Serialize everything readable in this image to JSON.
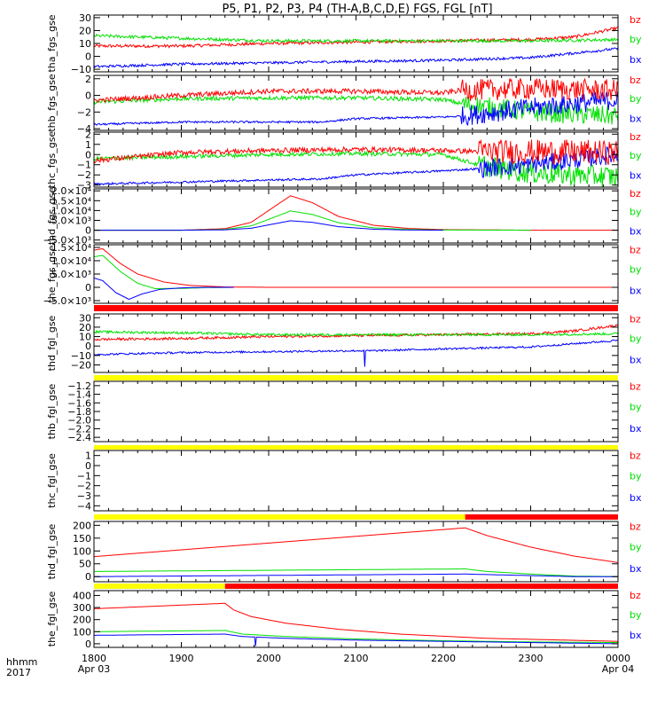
{
  "title": "P5, P1, P2, P3, P4 (TH-A,B,C,D,E) FGS, FGL [nT]",
  "x_axis": {
    "ticks": [
      {
        "label": "1800",
        "sub": "Apr 03",
        "t": 0
      },
      {
        "label": "1900",
        "sub": "",
        "t": 1
      },
      {
        "label": "2000",
        "sub": "",
        "t": 2
      },
      {
        "label": "2100",
        "sub": "",
        "t": 3
      },
      {
        "label": "2200",
        "sub": "",
        "t": 4
      },
      {
        "label": "2300",
        "sub": "",
        "t": 5
      },
      {
        "label": "0000",
        "sub": "Apr 04",
        "t": 6
      }
    ],
    "left_label_1": "hhmm",
    "left_label_2": "2017"
  },
  "legend_colors": {
    "bz": "#ff0000",
    "by": "#00e000",
    "bx": "#0000ff"
  },
  "chart_data": [
    {
      "type": "line",
      "ylabel": "tha_fgs_gse",
      "ylim": [
        -12,
        32
      ],
      "yticks": [
        {
          "v": 30,
          "label": "30"
        },
        {
          "v": 20,
          "label": "20"
        },
        {
          "v": 10,
          "label": "10"
        },
        {
          "v": 0,
          "label": "0"
        },
        {
          "v": -10,
          "label": "−10"
        }
      ],
      "legend": [
        "bz",
        "by",
        "bx"
      ],
      "series": [
        {
          "name": "bz",
          "color": "#ff0000",
          "noise": 1.2,
          "x": [
            0,
            1,
            2,
            3,
            4,
            5,
            5.5,
            6
          ],
          "y": [
            8,
            8,
            10,
            11,
            12,
            13,
            15,
            22
          ]
        },
        {
          "name": "by",
          "color": "#00e000",
          "noise": 1.2,
          "x": [
            0,
            1,
            2,
            3,
            4,
            5,
            6
          ],
          "y": [
            16,
            14,
            12,
            12,
            12,
            12,
            13
          ]
        },
        {
          "name": "bx",
          "color": "#0000ff",
          "noise": 1,
          "x": [
            0,
            1,
            2,
            3,
            4,
            5,
            6
          ],
          "y": [
            -8,
            -6,
            -5,
            -4,
            -3,
            -1,
            6
          ]
        }
      ]
    },
    {
      "type": "line",
      "ylabel": "thb_fgs_gse",
      "ylim": [
        -4.2,
        2.4
      ],
      "yticks": [
        {
          "v": 2,
          "label": "2"
        },
        {
          "v": 0,
          "label": "0"
        },
        {
          "v": -2,
          "label": "−2"
        },
        {
          "v": -4,
          "label": "−4"
        }
      ],
      "legend": [
        "bz",
        "by",
        "bx"
      ],
      "series": [
        {
          "name": "by",
          "color": "#00e000",
          "noise": 0.25,
          "x": [
            0,
            1,
            2,
            3,
            4,
            4.2,
            5,
            6
          ],
          "y": [
            -0.8,
            -0.4,
            -0.3,
            -0.3,
            -0.5,
            -1,
            -2,
            -2.5
          ],
          "noise_after": 4.2,
          "noise_big": 1.2
        },
        {
          "name": "bx",
          "color": "#0000ff",
          "noise": 0.12,
          "x": [
            0,
            1,
            2,
            2.6,
            3,
            4,
            4.2,
            5,
            6
          ],
          "y": [
            -3.5,
            -3.2,
            -3.2,
            -3.2,
            -2.8,
            -2.6,
            -2.5,
            -1.5,
            -0.5
          ],
          "noise_after": 4.2,
          "noise_big": 1.2
        },
        {
          "name": "bz",
          "color": "#ff0000",
          "noise": 0.3,
          "x": [
            0,
            1,
            2,
            3,
            4,
            4.2,
            5,
            6
          ],
          "y": [
            -0.6,
            0,
            0.5,
            0.5,
            0.3,
            0.6,
            0.8,
            0.6
          ],
          "noise_after": 4.2,
          "noise_big": 1.3
        }
      ]
    },
    {
      "type": "line",
      "ylabel": "thc_fgs_gse",
      "ylim": [
        -3.2,
        2.2
      ],
      "yticks": [
        {
          "v": 2,
          "label": "2"
        },
        {
          "v": 1,
          "label": "1"
        },
        {
          "v": 0,
          "label": "0"
        },
        {
          "v": -1,
          "label": "−1"
        },
        {
          "v": -2,
          "label": "−2"
        },
        {
          "v": -3,
          "label": "−3"
        }
      ],
      "legend": [
        "bz",
        "by",
        "bx"
      ],
      "series": [
        {
          "name": "by",
          "color": "#00e000",
          "noise": 0.2,
          "x": [
            0,
            1,
            2,
            3,
            4,
            4.4,
            5,
            6
          ],
          "y": [
            -0.4,
            -0.2,
            0,
            0.1,
            0,
            -1,
            -1.8,
            -2.2
          ],
          "noise_after": 4.4,
          "noise_big": 1.1
        },
        {
          "name": "bx",
          "color": "#0000ff",
          "noise": 0.1,
          "x": [
            0,
            1,
            2,
            2.6,
            3,
            4,
            4.4,
            5,
            6
          ],
          "y": [
            -2.9,
            -2.7,
            -2.5,
            -2.4,
            -2,
            -1.6,
            -1.4,
            -1,
            0
          ],
          "noise_after": 4.4,
          "noise_big": 0.9
        },
        {
          "name": "bz",
          "color": "#ff0000",
          "noise": 0.25,
          "x": [
            0,
            1,
            2,
            3,
            4,
            4.4,
            5,
            6
          ],
          "y": [
            -0.6,
            0.2,
            0.4,
            0.5,
            0.4,
            0.3,
            0.3,
            0.2
          ],
          "noise_after": 4.4,
          "noise_big": 1.2
        }
      ]
    },
    {
      "type": "line",
      "ylabel": "thd_fgs_gse",
      "ylim": [
        -6500,
        21000
      ],
      "yticks": [
        {
          "v": 20000,
          "label": "2.0×10⁴"
        },
        {
          "v": 15000,
          "label": "1.5×10⁴"
        },
        {
          "v": 10000,
          "label": "1.0×10⁴"
        },
        {
          "v": 5000,
          "label": "5.0×10³"
        },
        {
          "v": 0,
          "label": "0"
        },
        {
          "v": -5000,
          "label": "−5.0×10³"
        }
      ],
      "legend": [
        "bz",
        "by",
        "bx"
      ],
      "series": [
        {
          "name": "bz",
          "color": "#ff0000",
          "x": [
            0,
            1,
            1.5,
            1.8,
            2,
            2.25,
            2.5,
            2.8,
            3.2,
            3.6,
            4,
            5,
            6
          ],
          "y": [
            0,
            0,
            800,
            4000,
            10000,
            17500,
            14000,
            7000,
            2500,
            900,
            300,
            0,
            0
          ]
        },
        {
          "name": "by",
          "color": "#00e000",
          "x": [
            0,
            1,
            1.5,
            1.8,
            2,
            2.25,
            2.5,
            2.8,
            3.2,
            3.6,
            4,
            5
          ],
          "y": [
            0,
            0,
            400,
            2200,
            5500,
            9800,
            8000,
            3800,
            1200,
            400,
            100,
            0
          ]
        },
        {
          "name": "bx",
          "color": "#0000ff",
          "x": [
            0,
            1,
            1.5,
            1.8,
            2,
            2.25,
            2.5,
            2.8,
            3.2,
            3.6,
            4
          ],
          "y": [
            0,
            0,
            200,
            1000,
            2700,
            4800,
            4000,
            1800,
            500,
            100,
            0
          ]
        }
      ]
    },
    {
      "type": "line",
      "ylabel": "the_fgs_gse",
      "ylim": [
        -6000,
        16000
      ],
      "yticks": [
        {
          "v": 15000,
          "label": "1.5×10⁴"
        },
        {
          "v": 10000,
          "label": "1.0×10⁴"
        },
        {
          "v": 5000,
          "label": "5.0×10³"
        },
        {
          "v": 0,
          "label": "0"
        },
        {
          "v": -5000,
          "label": "−5.0×10³"
        }
      ],
      "legend": [
        "bz",
        "by",
        "bx"
      ],
      "series": [
        {
          "name": "bz",
          "color": "#ff0000",
          "x": [
            0,
            0.1,
            0.3,
            0.5,
            0.8,
            1.1,
            1.5,
            2,
            6
          ],
          "y": [
            14000,
            14500,
            9000,
            5000,
            2000,
            700,
            150,
            0,
            0
          ]
        },
        {
          "name": "by",
          "color": "#00e000",
          "x": [
            0,
            0.1,
            0.3,
            0.5,
            0.7,
            1,
            1.3,
            1.6
          ],
          "y": [
            11500,
            12000,
            6000,
            1500,
            -500,
            -400,
            -100,
            0
          ]
        },
        {
          "name": "bx",
          "color": "#0000ff",
          "x": [
            0,
            0.1,
            0.25,
            0.4,
            0.55,
            0.75,
            1,
            1.3,
            1.6
          ],
          "y": [
            3500,
            2500,
            -2000,
            -4500,
            -2500,
            -800,
            -200,
            0,
            0
          ]
        }
      ]
    },
    {
      "type": "line",
      "ylabel": "thd_fgl_gse",
      "ylim": [
        -28,
        34
      ],
      "yticks": [
        {
          "v": 30,
          "label": "30"
        },
        {
          "v": 20,
          "label": "20"
        },
        {
          "v": 10,
          "label": "10"
        },
        {
          "v": 0,
          "label": "0"
        },
        {
          "v": -10,
          "label": "−10"
        },
        {
          "v": -20,
          "label": "−20"
        }
      ],
      "legend": [
        "bz",
        "by",
        "bx"
      ],
      "series": [
        {
          "name": "bz",
          "color": "#ff0000",
          "noise": 1.3,
          "x": [
            0,
            1,
            2,
            3,
            4,
            5,
            5.5,
            6
          ],
          "y": [
            7,
            8,
            10,
            11,
            12,
            13,
            16,
            22
          ]
        },
        {
          "name": "by",
          "color": "#00e000",
          "noise": 1.3,
          "x": [
            0,
            1,
            2,
            3,
            4,
            5,
            6
          ],
          "y": [
            15,
            14,
            12,
            12,
            12,
            12,
            13
          ]
        },
        {
          "name": "bx",
          "color": "#0000ff",
          "noise": 1,
          "x": [
            0,
            1,
            2,
            3,
            3.2,
            4,
            5,
            6
          ],
          "y": [
            -9,
            -7,
            -6,
            -5,
            -5,
            -3,
            -1,
            6
          ],
          "spike": {
            "x": 3.1,
            "to": -22
          }
        }
      ]
    },
    {
      "type": "line",
      "ylabel": "thb_fgl_gse",
      "ylim": [
        -2.5,
        -1.1
      ],
      "yticks": [
        {
          "v": -1.2,
          "label": "−1.2"
        },
        {
          "v": -1.4,
          "label": "−1.4"
        },
        {
          "v": -1.6,
          "label": "−1.6"
        },
        {
          "v": -1.8,
          "label": "−1.8"
        },
        {
          "v": -2.0,
          "label": "−2.0"
        },
        {
          "v": -2.2,
          "label": "−2.2"
        },
        {
          "v": -2.4,
          "label": "−2.4"
        }
      ],
      "legend": [
        "bz",
        "by",
        "bx"
      ],
      "series": []
    },
    {
      "type": "line",
      "ylabel": "thc_fgl_gse",
      "ylim": [
        -4.5,
        1.5
      ],
      "yticks": [
        {
          "v": 1,
          "label": "1"
        },
        {
          "v": 0,
          "label": "0"
        },
        {
          "v": -1,
          "label": "−1"
        },
        {
          "v": -2,
          "label": "−2"
        },
        {
          "v": -3,
          "label": "−3"
        },
        {
          "v": -4,
          "label": "−4"
        }
      ],
      "legend": [
        "bz",
        "by",
        "bx"
      ],
      "series": []
    },
    {
      "type": "line",
      "ylabel": "thd_fgl_gse",
      "ylim": [
        -20,
        215
      ],
      "yticks": [
        {
          "v": 200,
          "label": "200"
        },
        {
          "v": 150,
          "label": "150"
        },
        {
          "v": 100,
          "label": "100"
        },
        {
          "v": 50,
          "label": "50"
        },
        {
          "v": 0,
          "label": "0"
        }
      ],
      "legend": [
        "bz",
        "by",
        "bx"
      ],
      "series": [
        {
          "name": "bz",
          "color": "#ff0000",
          "x": [
            0,
            4.25,
            4.5,
            5,
            5.5,
            6
          ],
          "y": [
            78,
            190,
            160,
            115,
            80,
            55
          ]
        },
        {
          "name": "by",
          "color": "#00e000",
          "x": [
            0,
            4.25,
            4.5,
            5,
            5.5,
            6
          ],
          "y": [
            20,
            30,
            20,
            10,
            2,
            0
          ]
        },
        {
          "name": "bx",
          "color": "#0000ff",
          "x": [
            0,
            4.25,
            4.5,
            5,
            5.5,
            6
          ],
          "y": [
            0,
            10,
            8,
            4,
            0,
            0
          ]
        }
      ]
    },
    {
      "type": "line",
      "ylabel": "the_fgl_gse",
      "ylim": [
        -30,
        440
      ],
      "yticks": [
        {
          "v": 400,
          "label": "400"
        },
        {
          "v": 300,
          "label": "300"
        },
        {
          "v": 200,
          "label": "200"
        },
        {
          "v": 100,
          "label": "100"
        },
        {
          "v": 0,
          "label": "0"
        }
      ],
      "legend": [
        "bz",
        "by",
        "bx"
      ],
      "series": [
        {
          "name": "bz",
          "color": "#ff0000",
          "x": [
            0,
            1.5,
            1.6,
            1.8,
            2.2,
            2.8,
            3.5,
            4.5,
            6
          ],
          "y": [
            290,
            335,
            280,
            225,
            170,
            120,
            80,
            45,
            20
          ]
        },
        {
          "name": "by",
          "color": "#00e000",
          "x": [
            0,
            1.5,
            1.7,
            2.2,
            3,
            4,
            5,
            6
          ],
          "y": [
            100,
            110,
            80,
            60,
            40,
            25,
            15,
            10
          ]
        },
        {
          "name": "bx",
          "color": "#0000ff",
          "x": [
            0,
            1.5,
            1.7,
            2.2,
            3,
            4,
            5,
            6
          ],
          "y": [
            70,
            80,
            60,
            45,
            30,
            20,
            10,
            0
          ],
          "spike": {
            "x": 1.85,
            "to": -20
          }
        }
      ]
    }
  ],
  "status_bars": [
    {
      "segments": [
        {
          "from": 0,
          "to": 6,
          "color": "#ff0000"
        }
      ]
    },
    {
      "segments": [
        {
          "from": 0,
          "to": 6,
          "color": "#ffff00"
        }
      ]
    },
    {
      "segments": [
        {
          "from": 0,
          "to": 6,
          "color": "#ffff00"
        }
      ]
    },
    {
      "segments": [
        {
          "from": 0,
          "to": 4.25,
          "color": "#ffff00"
        },
        {
          "from": 4.25,
          "to": 6,
          "color": "#ff0000"
        }
      ]
    },
    {
      "segments": [
        {
          "from": 0,
          "to": 1.5,
          "color": "#ffff00"
        },
        {
          "from": 1.5,
          "to": 6,
          "color": "#ff0000"
        }
      ]
    }
  ]
}
